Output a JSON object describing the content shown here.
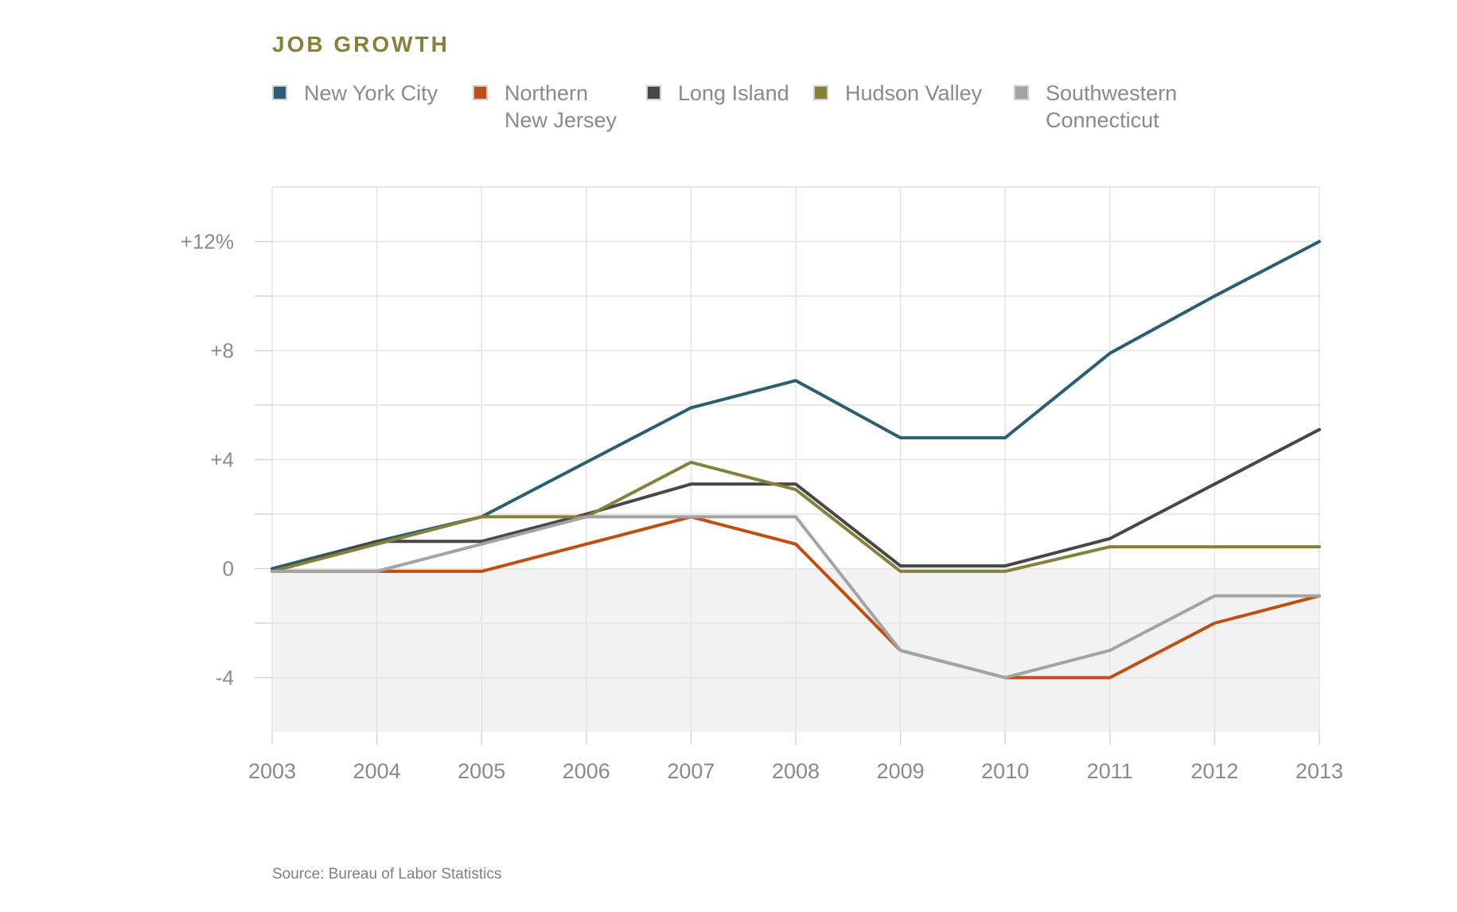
{
  "chart_data": {
    "type": "line",
    "title": "JOB GROWTH",
    "x": [
      2003,
      2004,
      2005,
      2006,
      2007,
      2008,
      2009,
      2010,
      2011,
      2012,
      2013
    ],
    "x_tick_labels": [
      "2003",
      "2004",
      "2005",
      "2006",
      "2007",
      "2008",
      "2009",
      "2010",
      "2011",
      "2012",
      "2013"
    ],
    "y_ticks": [
      12,
      8,
      4,
      0,
      -4
    ],
    "y_tick_labels": [
      "+12%",
      "+8",
      "+4",
      "0",
      "-4"
    ],
    "ylim": [
      -6,
      14
    ],
    "xlim": [
      2003,
      2013
    ],
    "grid": true,
    "negative_region_shaded": true,
    "legend_placement": "top",
    "series": [
      {
        "name": "New York City",
        "legend_lines": [
          "New York City"
        ],
        "color": "#2a5f73",
        "values": [
          0,
          1,
          1.9,
          3.9,
          5.9,
          6.9,
          4.8,
          4.8,
          7.9,
          10,
          12
        ]
      },
      {
        "name": "Northern New Jersey",
        "legend_lines": [
          "Northern",
          "New Jersey"
        ],
        "color": "#c04e12",
        "values": [
          -0.1,
          -0.1,
          -0.1,
          0.9,
          1.9,
          0.9,
          -3,
          -4,
          -4,
          -2,
          -1
        ]
      },
      {
        "name": "Long Island",
        "legend_lines": [
          "Long Island"
        ],
        "color": "#474747",
        "values": [
          -0.1,
          1,
          1,
          2,
          3.1,
          3.1,
          0.1,
          0.1,
          1.1,
          3.1,
          5.1
        ]
      },
      {
        "name": "Hudson Valley",
        "legend_lines": [
          "Hudson Valley"
        ],
        "color": "#85803a",
        "values": [
          -0.1,
          0.9,
          1.9,
          1.9,
          3.9,
          2.9,
          -0.1,
          -0.1,
          0.8,
          0.8,
          0.8
        ]
      },
      {
        "name": "Southwestern Connecticut",
        "legend_lines": [
          "Southwestern",
          "Connecticut"
        ],
        "color": "#a3a3a3",
        "values": [
          -0.1,
          -0.1,
          0.9,
          1.9,
          1.9,
          1.9,
          -3,
          -4,
          -3,
          -1,
          -1
        ]
      }
    ]
  },
  "source": "Source: Bureau of Labor Statistics"
}
